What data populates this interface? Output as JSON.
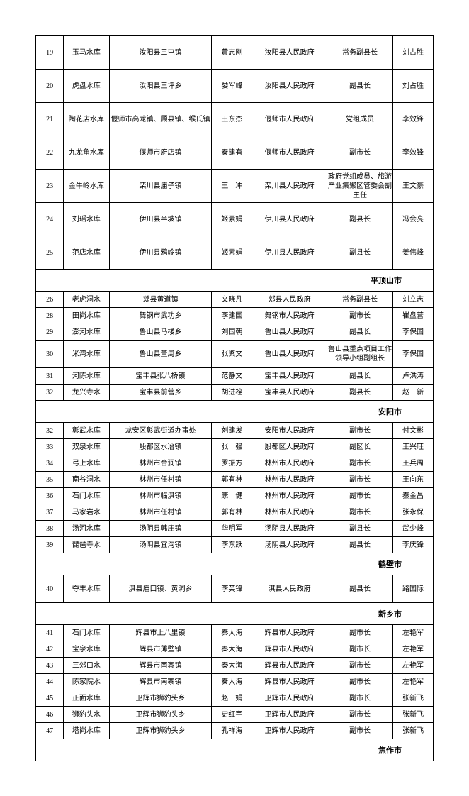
{
  "sections": [
    {
      "rows": [
        {
          "idx": "19",
          "name": "玉马水库",
          "loc": "汝阳县三屯镇",
          "p1": "黄志刚",
          "gov": "汝阳县人民政府",
          "title": "常务副县长",
          "p2": "刘占胜",
          "h": "tall"
        },
        {
          "idx": "20",
          "name": "虎盘水库",
          "loc": "汝阳县王坪乡",
          "p1": "娄军峰",
          "gov": "汝阳县人民政府",
          "title": "副县长",
          "p2": "刘占胜",
          "h": "tall"
        },
        {
          "idx": "21",
          "name": "陶花店水库",
          "loc": "偃师市高龙镇、顾县镇、缑氏镇",
          "p1": "王东杰",
          "gov": "偃师市人民政府",
          "title": "党组成员",
          "p2": "李效锋",
          "h": "tall"
        },
        {
          "idx": "22",
          "name": "九龙角水库",
          "loc": "偃师市府店镇",
          "p1": "秦建有",
          "gov": "偃师市人民政府",
          "title": "副市长",
          "p2": "李效锋",
          "h": "tall"
        },
        {
          "idx": "23",
          "name": "金牛岭水库",
          "loc": "栾川县庙子镇",
          "p1": "王　冲",
          "gov": "栾川县人民政府",
          "title": "政府党组成员、旅游产业集聚区管委会副主任",
          "p2": "王文豪",
          "h": "tall"
        },
        {
          "idx": "24",
          "name": "刘瑶水库",
          "loc": "伊川县半坡镇",
          "p1": "姬素娟",
          "gov": "伊川县人民政府",
          "title": "副县长",
          "p2": "冯会亮",
          "h": "tall"
        },
        {
          "idx": "25",
          "name": "范店水库",
          "loc": "伊川县鸦岭镇",
          "p1": "姬素娟",
          "gov": "伊川县人民政府",
          "title": "副县长",
          "p2": "姜伟峰",
          "h": "tall"
        }
      ]
    },
    {
      "header": "平顶山市",
      "rows": [
        {
          "idx": "26",
          "name": "老虎洞水",
          "loc": "郏县黄道镇",
          "p1": "文晓凡",
          "gov": "郏县人民政府",
          "title": "常务副县长",
          "p2": "刘立志",
          "h": "short"
        },
        {
          "idx": "28",
          "name": "田岗水库",
          "loc": "舞钢市武功乡",
          "p1": "李建国",
          "gov": "舞钢市人民政府",
          "title": "副市长",
          "p2": "崔盘营",
          "h": "short"
        },
        {
          "idx": "29",
          "name": "澎河水库",
          "loc": "鲁山县马楼乡",
          "p1": "刘国朝",
          "gov": "鲁山县人民政府",
          "title": "副县长",
          "p2": "李保国",
          "h": "short"
        },
        {
          "idx": "30",
          "name": "米湾水库",
          "loc": "鲁山县董周乡",
          "p1": "张聚文",
          "gov": "鲁山县人民政府",
          "title": "鲁山县重点项目工作领导小组副组长",
          "p2": "李保国",
          "h": "mid"
        },
        {
          "idx": "31",
          "name": "河陈水库",
          "loc": "宝丰县张八桥镇",
          "p1": "范静文",
          "gov": "宝丰县人民政府",
          "title": "副县长",
          "p2": "卢洪涛",
          "h": "short"
        },
        {
          "idx": "32",
          "name": "龙兴寺水",
          "loc": "宝丰县前营乡",
          "p1": "胡进栓",
          "gov": "宝丰县人民政府",
          "title": "副县长",
          "p2": "赵　新",
          "h": "short"
        }
      ]
    },
    {
      "header": "安阳市",
      "rows": [
        {
          "idx": "32",
          "name": "彰武水库",
          "loc": "龙安区彰武街道办事处",
          "p1": "刘建发",
          "gov": "安阳市人民政府",
          "title": "副市长",
          "p2": "付文彬",
          "h": "short"
        },
        {
          "idx": "33",
          "name": "双泉水库",
          "loc": "殷都区水冶镇",
          "p1": "张　强",
          "gov": "殷都区人民政府",
          "title": "副区长",
          "p2": "王兴旺",
          "h": "short"
        },
        {
          "idx": "34",
          "name": "弓上水库",
          "loc": "林州市合涧镇",
          "p1": "罗振方",
          "gov": "林州市人民政府",
          "title": "副市长",
          "p2": "王兵周",
          "h": "short"
        },
        {
          "idx": "35",
          "name": "南谷洞水",
          "loc": "林州市任村镇",
          "p1": "郭有林",
          "gov": "林州市人民政府",
          "title": "副市长",
          "p2": "王向东",
          "h": "short"
        },
        {
          "idx": "36",
          "name": "石门水库",
          "loc": "林州市临淇镇",
          "p1": "康　健",
          "gov": "林州市人民政府",
          "title": "副市长",
          "p2": "秦金昌",
          "h": "short"
        },
        {
          "idx": "37",
          "name": "马家岩水",
          "loc": "林州市任村镇",
          "p1": "郭有林",
          "gov": "林州市人民政府",
          "title": "副市长",
          "p2": "张永保",
          "h": "short"
        },
        {
          "idx": "38",
          "name": "汤河水库",
          "loc": "汤阴县韩庄镇",
          "p1": "华明军",
          "gov": "汤阴县人民政府",
          "title": "副县长",
          "p2": "武少峰",
          "h": "short"
        },
        {
          "idx": "39",
          "name": "琵琶寺水",
          "loc": "汤阴县宜沟镇",
          "p1": "李东跃",
          "gov": "汤阴县人民政府",
          "title": "副县长",
          "p2": "李庆锋",
          "h": "short"
        }
      ]
    },
    {
      "header": "鹤壁市",
      "rows": [
        {
          "idx": "40",
          "name": "夺丰水库",
          "loc": "淇县庙口镇、黄洞乡",
          "p1": "李英锋",
          "gov": "淇县人民政府",
          "title": "副县长",
          "p2": "路国际",
          "h": "mid"
        }
      ]
    },
    {
      "header": "新乡市",
      "rows": [
        {
          "idx": "41",
          "name": "石门水库",
          "loc": "辉县市上八里镇",
          "p1": "秦大海",
          "gov": "辉县市人民政府",
          "title": "副市长",
          "p2": "左艳军",
          "h": "short"
        },
        {
          "idx": "42",
          "name": "宝泉水库",
          "loc": "辉县市薄壁镇",
          "p1": "秦大海",
          "gov": "辉县市人民政府",
          "title": "副市长",
          "p2": "左艳军",
          "h": "short"
        },
        {
          "idx": "43",
          "name": "三郊口水",
          "loc": "辉县市南寨镇",
          "p1": "秦大海",
          "gov": "辉县市人民政府",
          "title": "副市长",
          "p2": "左艳军",
          "h": "short"
        },
        {
          "idx": "44",
          "name": "陈家院水",
          "loc": "辉县市南寨镇",
          "p1": "秦大海",
          "gov": "辉县市人民政府",
          "title": "副市长",
          "p2": "左艳军",
          "h": "short"
        },
        {
          "idx": "45",
          "name": "正面水库",
          "loc": "卫辉市狮豹头乡",
          "p1": "赵　娟",
          "gov": "卫辉市人民政府",
          "title": "副市长",
          "p2": "张新飞",
          "h": "short"
        },
        {
          "idx": "46",
          "name": "狮豹头水",
          "loc": "卫辉市狮豹头乡",
          "p1": "史红宇",
          "gov": "卫辉市人民政府",
          "title": "副市长",
          "p2": "张新飞",
          "h": "short"
        },
        {
          "idx": "47",
          "name": "塔岗水库",
          "loc": "卫辉市狮豹头乡",
          "p1": "孔祥海",
          "gov": "卫辉市人民政府",
          "title": "副市长",
          "p2": "张新飞",
          "h": "short"
        }
      ]
    },
    {
      "header": "焦作市",
      "rows": []
    }
  ]
}
